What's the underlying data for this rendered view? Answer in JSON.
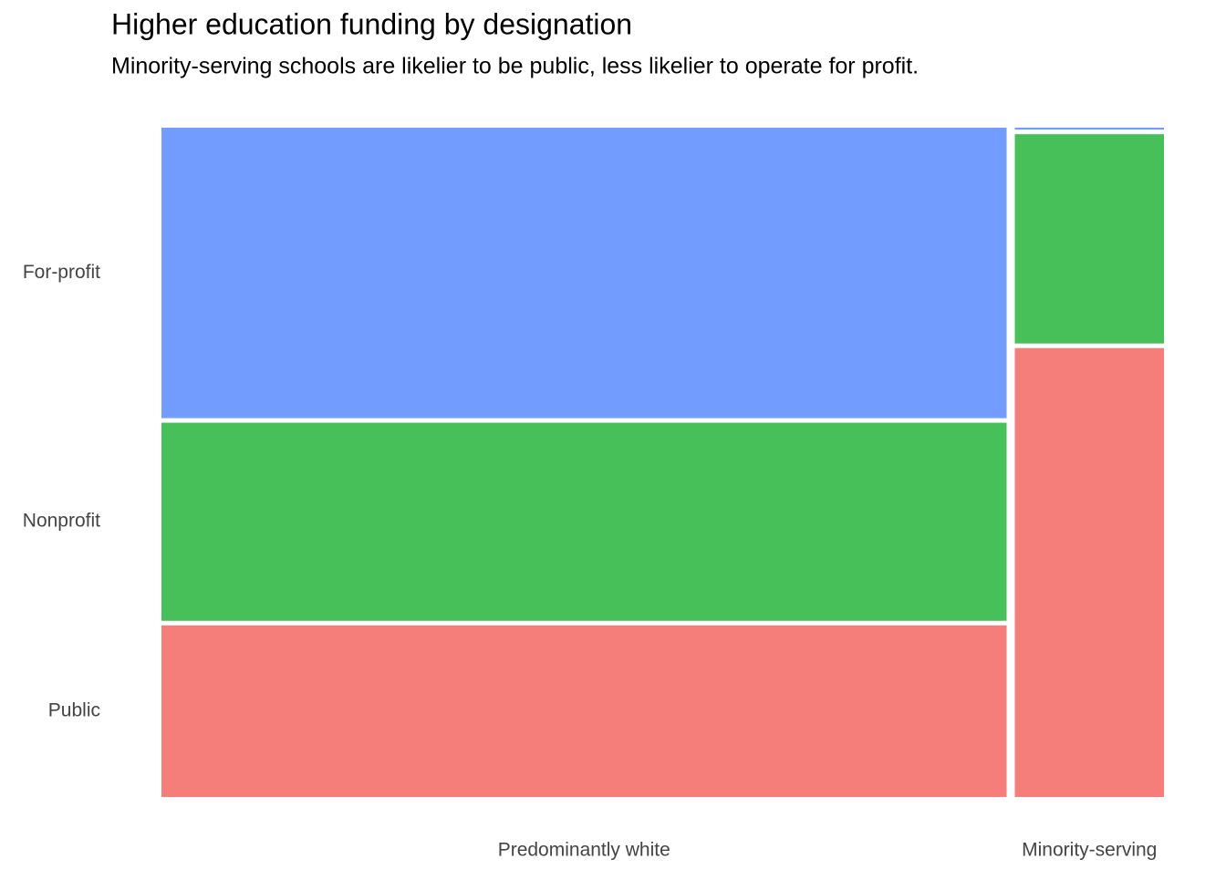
{
  "chart_data": {
    "type": "mosaic",
    "title": "Higher education funding by designation",
    "subtitle": "Minority-serving schools are likelier to be public, less likelier to operate for profit.",
    "categories": [
      "Predominantly white",
      "Minority-serving"
    ],
    "widths": [
      85,
      15
    ],
    "series": [
      {
        "name": "Public",
        "color": "#f67e7a",
        "values": [
          26,
          68
        ]
      },
      {
        "name": "Nonprofit",
        "color": "#48c05a",
        "values": [
          30,
          31.7
        ]
      },
      {
        "name": "For-profit",
        "color": "#729dff",
        "values": [
          44,
          0.3
        ]
      }
    ]
  }
}
